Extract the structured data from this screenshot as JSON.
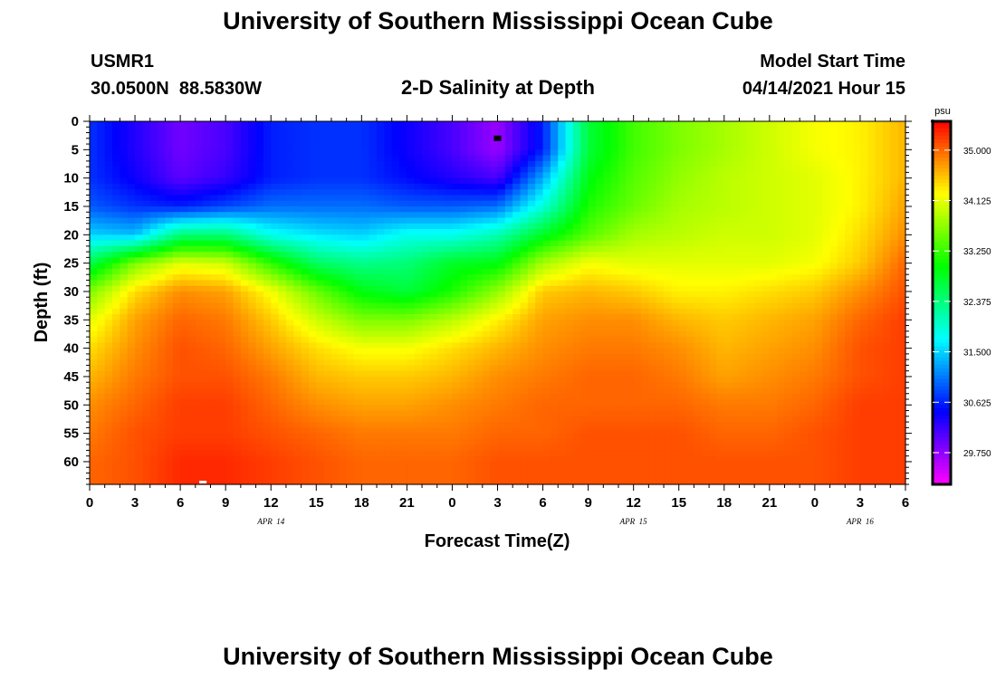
{
  "header": {
    "title_top": "University of Southern Mississippi Ocean Cube",
    "station_id": "USMR1",
    "coordinates": "30.0500N  88.5830W",
    "subtitle": "2-D Salinity at Depth",
    "model_label": "Model Start Time",
    "model_time": "04/14/2021 Hour 15",
    "title_bottom": "University of Southern Mississippi Ocean Cube"
  },
  "colors": {
    "axis": "#000000",
    "background": "#ffffff"
  },
  "chart_data": {
    "type": "heatmap",
    "title": "2-D Salinity at Depth",
    "xlabel": "Forecast Time(Z)",
    "ylabel": "Depth (ft)",
    "x_tick_labels": [
      "0",
      "3",
      "6",
      "9",
      "12",
      "15",
      "18",
      "21",
      "0",
      "3",
      "6",
      "9",
      "12",
      "15",
      "18",
      "21",
      "0",
      "3",
      "6"
    ],
    "x_range_hours": [
      0,
      54
    ],
    "date_labels": [
      {
        "label": "APR  14",
        "hour": 12
      },
      {
        "label": "APR  15",
        "hour": 36
      },
      {
        "label": "APR  16",
        "hour": 51
      }
    ],
    "y_tick_labels": [
      "0",
      "5",
      "10",
      "15",
      "20",
      "25",
      "30",
      "35",
      "40",
      "45",
      "50",
      "55",
      "60"
    ],
    "ylim": [
      0,
      64
    ],
    "colorbar": {
      "unit": "psu",
      "range": [
        29.2,
        35.5
      ],
      "tick_labels": [
        "35.000",
        "34.125",
        "33.250",
        "32.375",
        "31.500",
        "30.625",
        "29.750"
      ]
    },
    "depths_ft": [
      0,
      5,
      10,
      15,
      20,
      25,
      30,
      35,
      40,
      45,
      50,
      55,
      60,
      64
    ],
    "hours": [
      0,
      3,
      6,
      9,
      12,
      15,
      18,
      21,
      24,
      27,
      30,
      33,
      36,
      39,
      42,
      45,
      48,
      51,
      54
    ],
    "salinity_psu": [
      [
        30.7,
        30.3,
        29.9,
        30.1,
        30.6,
        30.7,
        30.7,
        30.4,
        30.1,
        29.7,
        30.6,
        32.7,
        33.3,
        33.6,
        33.8,
        34.0,
        34.2,
        34.3,
        34.6
      ],
      [
        30.7,
        30.3,
        29.9,
        30.1,
        30.6,
        30.7,
        30.7,
        30.4,
        30.1,
        29.7,
        30.6,
        32.7,
        33.3,
        33.6,
        33.8,
        34.0,
        34.2,
        34.3,
        34.6
      ],
      [
        30.7,
        30.4,
        30.0,
        30.2,
        30.6,
        30.7,
        30.7,
        30.5,
        30.3,
        30.1,
        31.3,
        32.9,
        33.4,
        33.7,
        33.9,
        34.0,
        34.1,
        34.3,
        34.6
      ],
      [
        30.9,
        30.7,
        30.6,
        30.8,
        31.0,
        31.0,
        31.0,
        30.9,
        30.9,
        31.0,
        31.9,
        33.1,
        33.5,
        33.8,
        33.9,
        34.0,
        34.1,
        34.3,
        34.7
      ],
      [
        31.5,
        31.4,
        32.4,
        32.4,
        31.8,
        31.6,
        31.5,
        31.8,
        31.8,
        32.1,
        32.8,
        33.4,
        33.8,
        33.9,
        34.0,
        34.0,
        34.1,
        34.4,
        34.8
      ],
      [
        32.6,
        33.6,
        34.1,
        34.0,
        33.2,
        32.5,
        32.3,
        32.4,
        32.8,
        32.9,
        33.8,
        34.2,
        34.1,
        34.1,
        34.1,
        34.1,
        34.2,
        34.5,
        35.0
      ],
      [
        33.6,
        34.4,
        34.8,
        34.7,
        34.2,
        33.5,
        32.9,
        32.7,
        33.1,
        33.7,
        34.5,
        34.6,
        34.5,
        34.3,
        34.3,
        34.4,
        34.5,
        34.8,
        35.1
      ],
      [
        34.1,
        34.7,
        35.0,
        34.9,
        34.5,
        34.0,
        33.6,
        33.6,
        33.9,
        34.3,
        34.7,
        34.8,
        34.8,
        34.6,
        34.5,
        34.6,
        34.7,
        35.0,
        35.2
      ],
      [
        34.4,
        34.8,
        35.1,
        35.0,
        34.7,
        34.4,
        34.2,
        34.2,
        34.4,
        34.6,
        34.8,
        34.9,
        34.9,
        34.8,
        34.6,
        34.7,
        34.8,
        35.1,
        35.2
      ],
      [
        34.6,
        34.9,
        35.1,
        35.1,
        34.9,
        34.6,
        34.5,
        34.5,
        34.6,
        34.8,
        34.9,
        35.0,
        35.0,
        34.9,
        34.7,
        34.8,
        34.9,
        35.1,
        35.2
      ],
      [
        34.8,
        35.0,
        35.2,
        35.2,
        35.0,
        34.8,
        34.7,
        34.7,
        34.8,
        34.9,
        35.0,
        35.0,
        35.0,
        35.0,
        34.9,
        34.9,
        35.0,
        35.2,
        35.2
      ],
      [
        34.9,
        35.1,
        35.2,
        35.2,
        35.1,
        35.0,
        34.9,
        34.9,
        34.9,
        35.0,
        35.0,
        35.1,
        35.1,
        35.1,
        35.0,
        35.0,
        35.1,
        35.2,
        35.2
      ],
      [
        35.0,
        35.1,
        35.3,
        35.3,
        35.2,
        35.1,
        35.0,
        35.0,
        35.0,
        35.1,
        35.1,
        35.1,
        35.1,
        35.1,
        35.1,
        35.1,
        35.1,
        35.2,
        35.2
      ],
      [
        35.0,
        35.1,
        35.3,
        35.3,
        35.2,
        35.1,
        35.0,
        35.0,
        35.0,
        35.1,
        35.1,
        35.1,
        35.1,
        35.1,
        35.1,
        35.1,
        35.1,
        35.2,
        35.2
      ]
    ]
  }
}
